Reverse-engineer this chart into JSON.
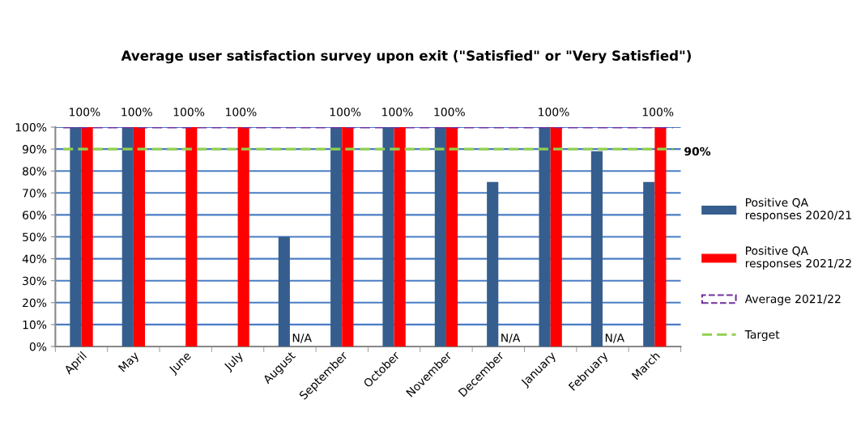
{
  "chart_data": {
    "type": "bar",
    "title": "Average user satisfaction survey upon exit (\"Satisfied\" or \"Very Satisfied\")",
    "categories": [
      "April",
      "May",
      "June",
      "July",
      "August",
      "September",
      "October",
      "November",
      "December",
      "January",
      "February",
      "March"
    ],
    "series": [
      {
        "name": "Positive QA responses 2020/21",
        "color": "#355e8e",
        "values": [
          100,
          100,
          null,
          null,
          50,
          100,
          100,
          100,
          75,
          100,
          89,
          75
        ]
      },
      {
        "name": "Positive QA responses 2021/22",
        "color": "#ff0000",
        "values": [
          100,
          100,
          100,
          100,
          null,
          100,
          100,
          100,
          null,
          100,
          null,
          100
        ],
        "value_labels": [
          "100%",
          "100%",
          "100%",
          "100%",
          "N/A",
          "100%",
          "100%",
          "100%",
          "N/A",
          "100%",
          "N/A",
          "100%"
        ]
      }
    ],
    "ref_lines": [
      {
        "axis": "y",
        "value": 100,
        "label": "Average 2021/22",
        "color": "#7030a0",
        "line_style": "dashed"
      },
      {
        "axis": "y",
        "value": 90,
        "label": "Target",
        "color": "#92d050",
        "line_style": "dashed"
      }
    ],
    "annotations": [
      "90%"
    ],
    "ylim": [
      0,
      100
    ],
    "yticks": [
      {
        "value": 0,
        "label": "0%"
      },
      {
        "value": 10,
        "label": "10%"
      },
      {
        "value": 20,
        "label": "20%"
      },
      {
        "value": 30,
        "label": "30%"
      },
      {
        "value": 40,
        "label": "40%"
      },
      {
        "value": 50,
        "label": "50%"
      },
      {
        "value": 60,
        "label": "60%"
      },
      {
        "value": 70,
        "label": "70%"
      },
      {
        "value": 80,
        "label": "80%"
      },
      {
        "value": 90,
        "label": "90%"
      },
      {
        "value": 100,
        "label": "100%"
      }
    ],
    "grid": "y",
    "legend": "right"
  }
}
